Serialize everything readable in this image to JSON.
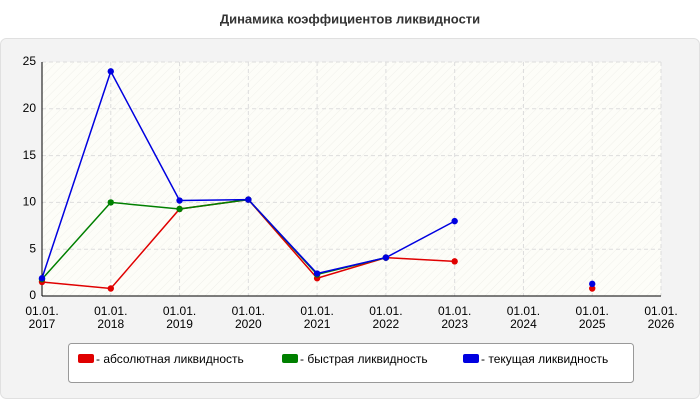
{
  "chart_data": {
    "type": "line",
    "title": "Динамика коэффициентов ликвидности",
    "categories": [
      [
        "01.01.",
        "2017"
      ],
      [
        "01.01.",
        "2018"
      ],
      [
        "01.01.",
        "2019"
      ],
      [
        "01.01.",
        "2020"
      ],
      [
        "01.01.",
        "2021"
      ],
      [
        "01.01.",
        "2022"
      ],
      [
        "01.01.",
        "2023"
      ],
      [
        "01.01.",
        "2024"
      ],
      [
        "01.01.",
        "2025"
      ],
      [
        "01.01.",
        "2026"
      ]
    ],
    "series": [
      {
        "name": "- абсолютная ликвидность",
        "color": "#e00000",
        "values": [
          1.5,
          0.8,
          9.3,
          10.3,
          1.9,
          4.1,
          3.7,
          null,
          0.8,
          null
        ]
      },
      {
        "name": "- быстрая ликвидность",
        "color": "#008000",
        "values": [
          1.8,
          10,
          9.3,
          10.3,
          2.3,
          4.1,
          null,
          null,
          null,
          null
        ]
      },
      {
        "name": "- текущая ликвидность",
        "color": "#0000e0",
        "values": [
          1.9,
          24,
          10.2,
          10.3,
          2.4,
          4.1,
          8.0,
          null,
          1.3,
          null
        ]
      }
    ],
    "ylim": [
      0,
      25
    ],
    "yticks": [
      0,
      5,
      10,
      15,
      20,
      25
    ],
    "grid": true,
    "legend": "bottom"
  }
}
